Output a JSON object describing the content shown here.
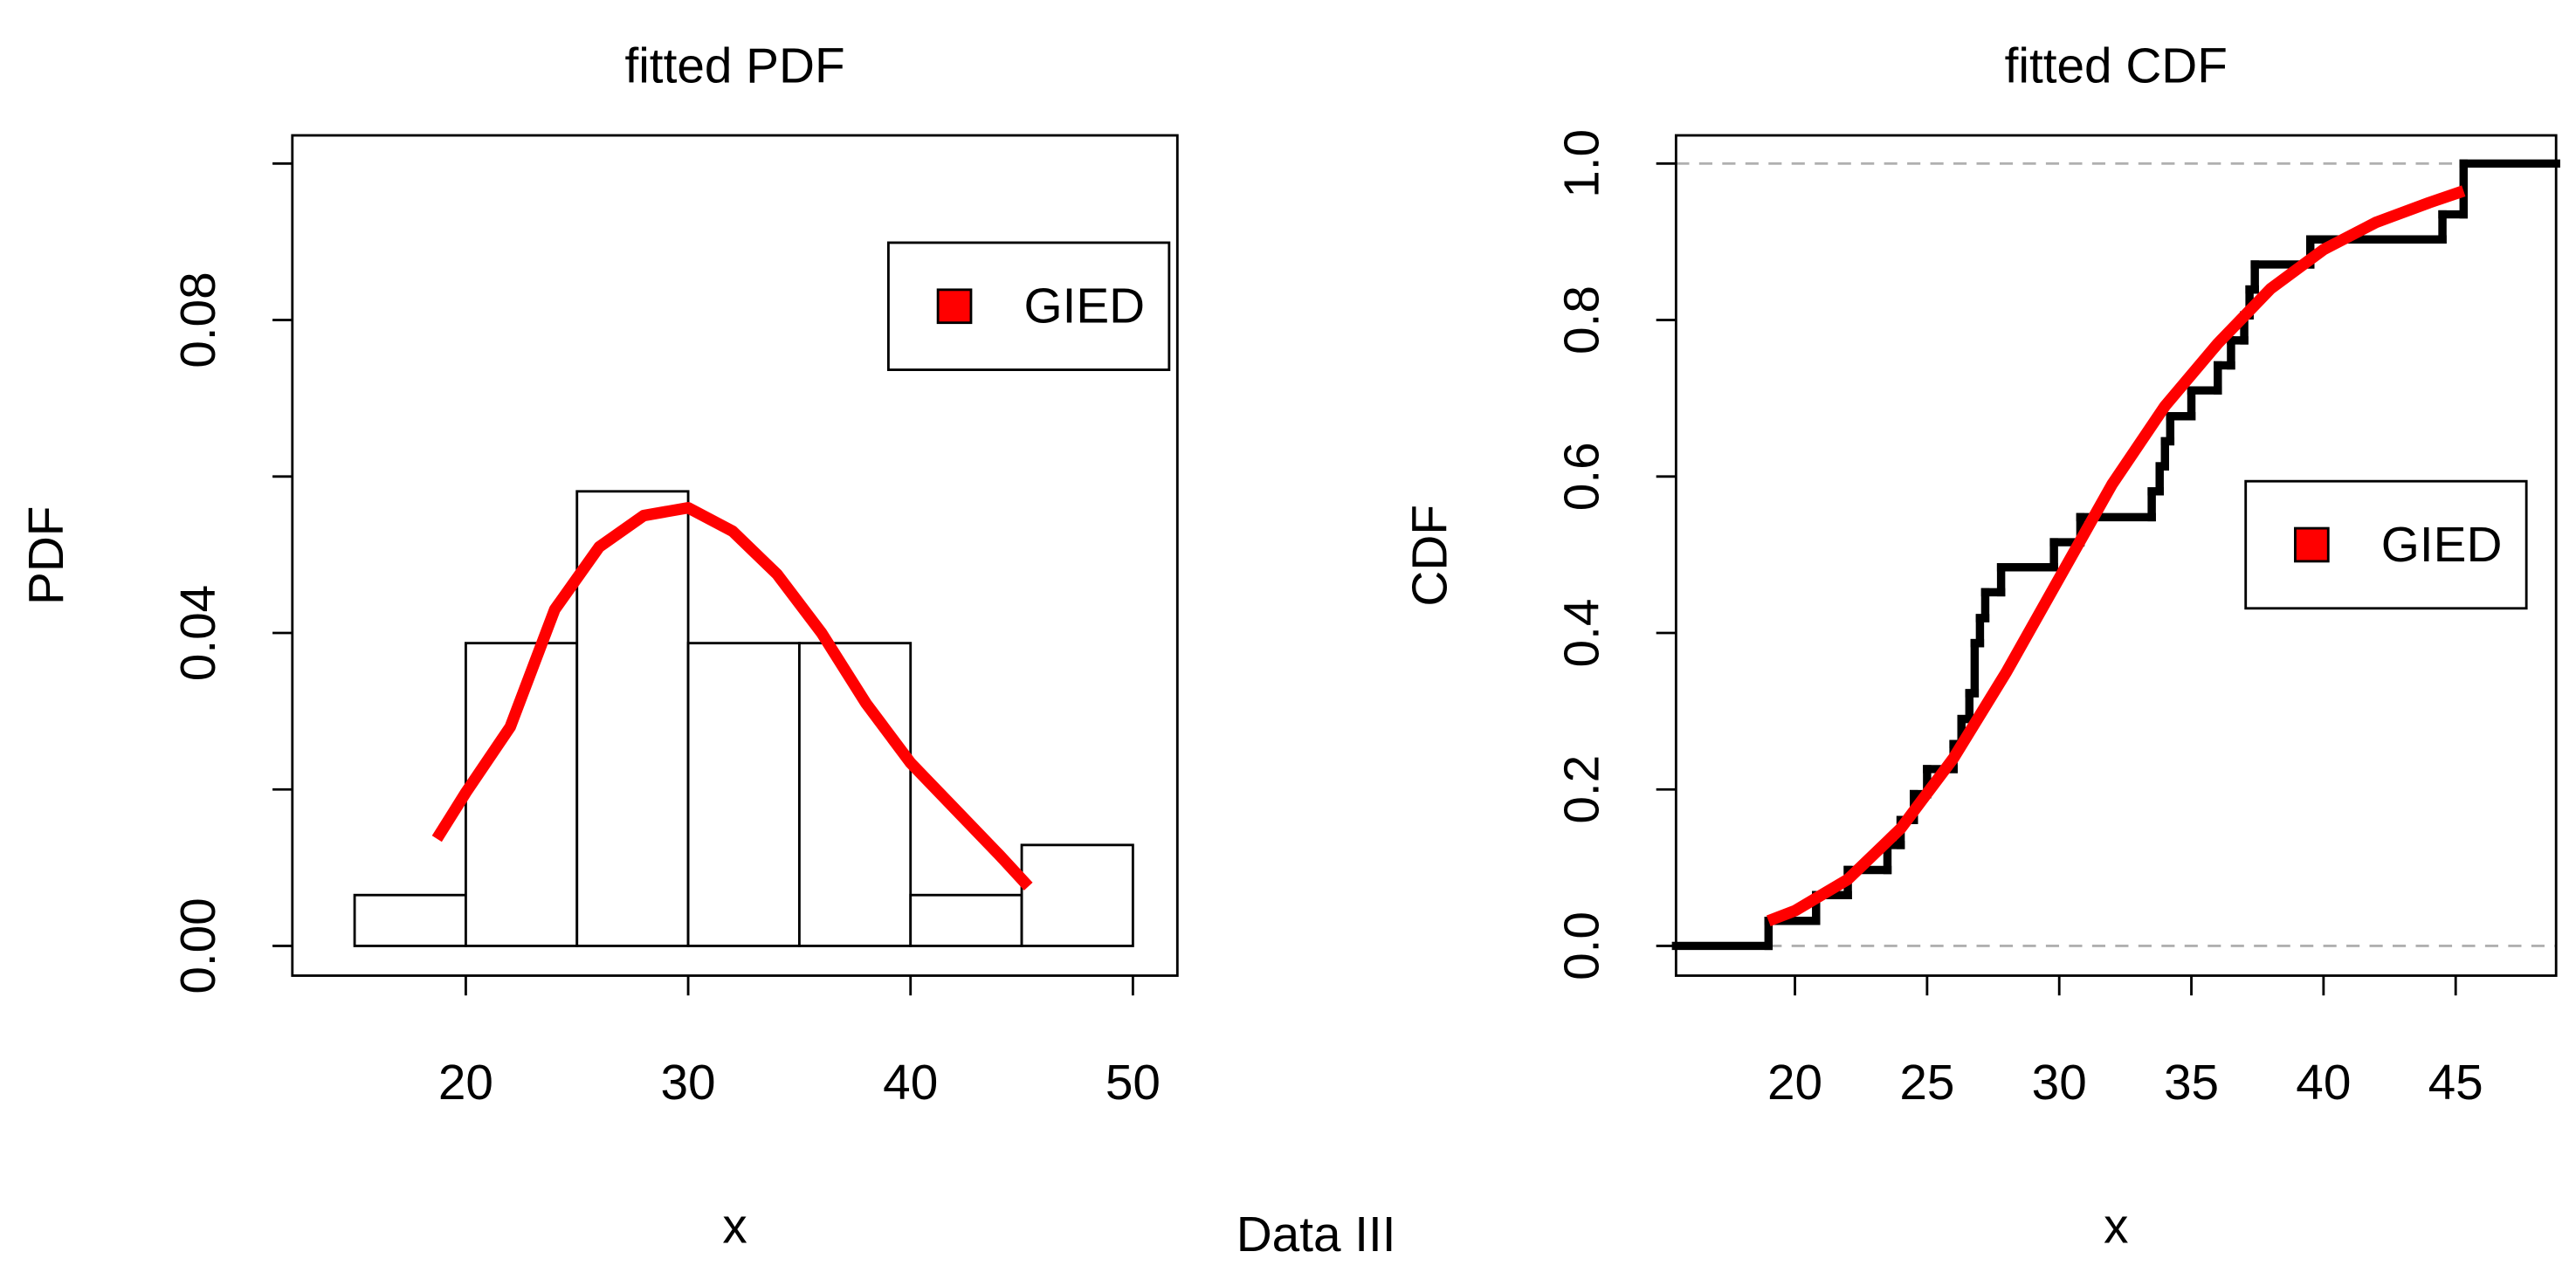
{
  "title": "Data III",
  "chart_data": [
    {
      "type": "histogram",
      "title": "fitted PDF",
      "xlabel": "x",
      "ylabel": "PDF",
      "bins": [
        15,
        20,
        25,
        30,
        35,
        40,
        45,
        50
      ],
      "values": [
        0.0065,
        0.0387,
        0.0581,
        0.0387,
        0.0387,
        0.0065,
        0.0129
      ],
      "color": "#ffffff",
      "series": [
        {
          "name": "GIED",
          "color": "#ff0000",
          "x": [
            18.7,
            20,
            22,
            24,
            26,
            28,
            30,
            32,
            34,
            36,
            38,
            40,
            42,
            44,
            45.3
          ],
          "values": [
            0.0137,
            0.0196,
            0.028,
            0.043,
            0.051,
            0.055,
            0.056,
            0.053,
            0.0475,
            0.04,
            0.031,
            0.0234,
            0.0175,
            0.0116,
            0.0076
          ]
        }
      ],
      "xlim": [
        12.2,
        52
      ],
      "ylim": [
        -0.0038,
        0.1036
      ],
      "xticks": [
        20,
        30,
        40,
        50
      ],
      "yticks": [
        {
          "value": 0,
          "label": "0.00"
        },
        {
          "value": 0.04,
          "label": "0.04"
        },
        {
          "value": 0.08,
          "label": "0.08"
        }
      ],
      "yminor_ticks": [
        0.02,
        0.06,
        0.1
      ],
      "legend": "topright"
    },
    {
      "type": "ecdf",
      "title": "fitted CDF",
      "xlabel": "x",
      "ylabel": "CDF",
      "steps": {
        "x": [
          19,
          20.8,
          22,
          23.5,
          24,
          24.5,
          25,
          26,
          26.3,
          26.6,
          26.8,
          27,
          27.2,
          27.8,
          29.8,
          30.8,
          33.5,
          33.8,
          34,
          34.2,
          35,
          36,
          36.5,
          37,
          37.2,
          37.4,
          39.5,
          44.5,
          45.3
        ],
        "values": [
          0.032,
          0.065,
          0.097,
          0.129,
          0.161,
          0.194,
          0.226,
          0.258,
          0.29,
          0.323,
          0.387,
          0.419,
          0.452,
          0.484,
          0.516,
          0.548,
          0.581,
          0.613,
          0.645,
          0.677,
          0.71,
          0.742,
          0.774,
          0.806,
          0.839,
          0.871,
          0.903,
          0.935,
          1.0
        ]
      },
      "series": [
        {
          "name": "GIED",
          "color": "#ff0000",
          "x": [
            19,
            20,
            22,
            24,
            26,
            28,
            30,
            32,
            34,
            36,
            38,
            40,
            42,
            44,
            45.3
          ],
          "values": [
            0.032,
            0.045,
            0.085,
            0.15,
            0.24,
            0.35,
            0.47,
            0.59,
            0.69,
            0.77,
            0.84,
            0.89,
            0.925,
            0.95,
            0.965
          ]
        }
      ],
      "reference_lines": [
        0,
        1
      ],
      "xlim": [
        15.5,
        48.8
      ],
      "ylim": [
        -0.038,
        1.036
      ],
      "xticks": [
        20,
        25,
        30,
        35,
        40,
        45
      ],
      "yticks": [
        {
          "value": 0,
          "label": "0.0"
        },
        0.2,
        0.4,
        0.6,
        0.8,
        {
          "value": 1,
          "label": "1.0"
        }
      ],
      "legend": "right"
    }
  ]
}
